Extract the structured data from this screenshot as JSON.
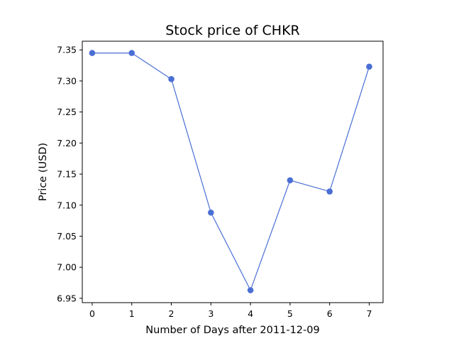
{
  "chart_data": {
    "type": "line",
    "title": "Stock price of CHKR",
    "xlabel": "Number of Days after 2011-12-09",
    "ylabel": "Price (USD)",
    "x": [
      0,
      1,
      2,
      3,
      4,
      5,
      6,
      7
    ],
    "series": [
      {
        "values": [
          7.345,
          7.345,
          7.303,
          7.088,
          6.963,
          7.14,
          7.122,
          7.323
        ],
        "color": "#4a6fd4"
      }
    ],
    "xlim": [
      -0.25,
      7.35
    ],
    "ylim": [
      6.943,
      7.364
    ],
    "xticks": [
      "0",
      "1",
      "2",
      "3",
      "4",
      "5",
      "6",
      "7"
    ],
    "yticks": [
      "6.95",
      "7.00",
      "7.05",
      "7.10",
      "7.15",
      "7.20",
      "7.25",
      "7.30",
      "7.35"
    ],
    "grid": false,
    "legend": "none",
    "markers": "circle"
  }
}
